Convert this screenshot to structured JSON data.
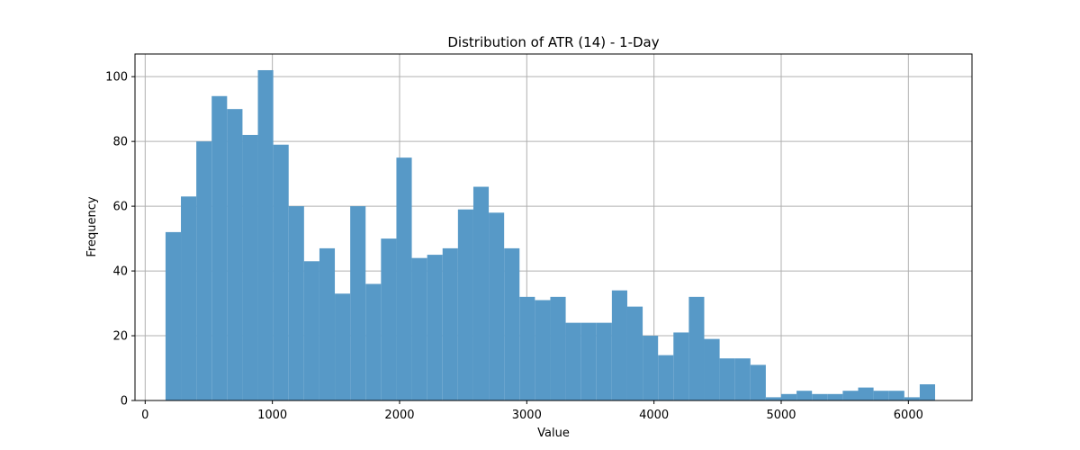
{
  "chart_data": {
    "type": "bar",
    "title": "Distribution of ATR (14) - 1-Day",
    "xlabel": "Value",
    "ylabel": "Frequency",
    "xlim": [
      -80,
      6500
    ],
    "ylim": [
      0,
      107
    ],
    "grid": true,
    "bar_color": "#5799c7",
    "x_ticks": [
      0,
      1000,
      2000,
      3000,
      4000,
      5000,
      6000
    ],
    "y_ticks": [
      0,
      20,
      40,
      60,
      80,
      100
    ],
    "bin_start": 160,
    "bin_width": 121,
    "values": [
      52,
      63,
      80,
      94,
      90,
      82,
      102,
      79,
      60,
      43,
      47,
      33,
      60,
      36,
      50,
      75,
      44,
      45,
      47,
      59,
      66,
      58,
      47,
      32,
      31,
      32,
      24,
      24,
      24,
      34,
      29,
      20,
      14,
      21,
      32,
      19,
      13,
      13,
      11,
      1,
      2,
      3,
      2,
      2,
      3,
      4,
      3,
      3,
      1,
      5
    ]
  }
}
